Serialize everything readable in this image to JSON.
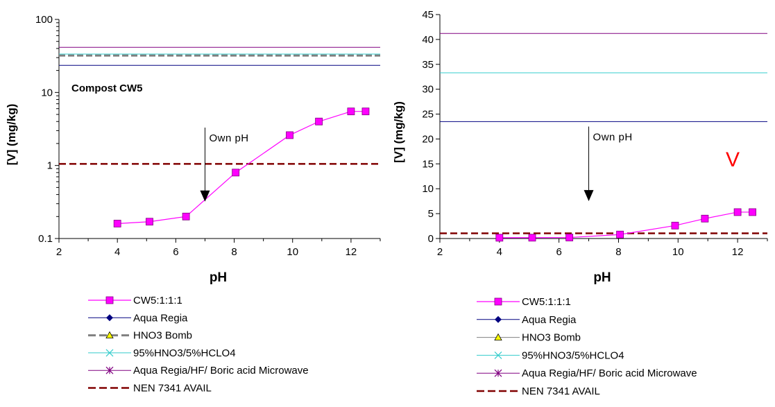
{
  "chart_data": [
    {
      "type": "line",
      "yscale": "log",
      "xlabel": "pH",
      "ylabel": "[V] (mg/kg)",
      "xlim": [
        2,
        13
      ],
      "ylim": [
        0.1,
        100
      ],
      "xticks": [
        2,
        4,
        6,
        8,
        10,
        12
      ],
      "yticks": [
        0.1,
        1,
        10,
        100
      ],
      "yticklabels": [
        "0.1",
        "1",
        "10",
        "100"
      ],
      "annotation_text": "Compost CW5",
      "arrow": {
        "label": "Own pH",
        "x": 7,
        "y_top": 3.3,
        "y_bottom": 0.32
      },
      "series": [
        {
          "name": "CW5:1:1:1",
          "color": "#ff00ff",
          "marker": "square",
          "x": [
            4.0,
            5.1,
            6.35,
            8.05,
            9.9,
            10.9,
            12.0,
            12.5
          ],
          "y": [
            0.16,
            0.17,
            0.2,
            0.8,
            2.6,
            4.0,
            5.5,
            5.5
          ]
        },
        {
          "name": "Aqua Regia",
          "color": "#000080",
          "marker": "diamond",
          "dash": "solid",
          "width": 1,
          "hline": 23.5
        },
        {
          "name": "HNO3 Bomb",
          "color": "#808080",
          "marker": "triangle",
          "dash": "dashed",
          "width": 3,
          "hline": 32
        },
        {
          "name": "95%HNO3/5%HCLO4",
          "color": "#33cccc",
          "marker": "x",
          "dash": "solid",
          "width": 1,
          "hline": 33.5
        },
        {
          "name": "Aqua Regia/HF/ Boric acid Microwave",
          "color": "#800080",
          "marker": "star",
          "dash": "solid",
          "width": 1,
          "hline": 41.5
        },
        {
          "name": "NEN 7341 AVAIL",
          "color": "#800000",
          "marker": "none",
          "dash": "dashed",
          "width": 2.5,
          "hline": 1.05
        }
      ]
    },
    {
      "type": "line",
      "yscale": "linear",
      "xlabel": "pH",
      "ylabel": "[V] (mg/kg)",
      "xlim": [
        2,
        13
      ],
      "ylim": [
        0,
        45
      ],
      "xticks": [
        2,
        4,
        6,
        8,
        10,
        12
      ],
      "yticks": [
        0,
        5,
        10,
        15,
        20,
        25,
        30,
        35,
        40,
        45
      ],
      "yticklabels": [
        "0",
        "5",
        "10",
        "15",
        "20",
        "25",
        "30",
        "35",
        "40",
        "45"
      ],
      "annotation_text": "V",
      "annotation_color": "#ff0000",
      "arrow": {
        "label": "Own pH",
        "x": 7,
        "y_top": 22.5,
        "y_bottom": 7.5
      },
      "series": [
        {
          "name": "CW5:1:1:1",
          "color": "#ff00ff",
          "marker": "square",
          "x": [
            4.0,
            5.1,
            6.35,
            8.05,
            9.9,
            10.9,
            12.0,
            12.5
          ],
          "y": [
            0.16,
            0.17,
            0.2,
            0.8,
            2.6,
            4.0,
            5.3,
            5.3
          ]
        },
        {
          "name": "Aqua Regia",
          "color": "#000080",
          "marker": "diamond",
          "dash": "solid",
          "width": 1,
          "hline": 23.5
        },
        {
          "name": "HNO3 Bomb",
          "color": "#808080",
          "marker": "triangle",
          "dash": "solid",
          "width": 1,
          "hline": null
        },
        {
          "name": "95%HNO3/5%HCLO4",
          "color": "#33cccc",
          "marker": "x",
          "dash": "solid",
          "width": 1,
          "hline": 33.3
        },
        {
          "name": "Aqua Regia/HF/ Boric acid Microwave",
          "color": "#800080",
          "marker": "star",
          "dash": "solid",
          "width": 1,
          "hline": 41.2
        },
        {
          "name": "NEN 7341 AVAIL",
          "color": "#800000",
          "marker": "none",
          "dash": "dashed",
          "width": 2.5,
          "hline": 1.05
        }
      ]
    }
  ]
}
